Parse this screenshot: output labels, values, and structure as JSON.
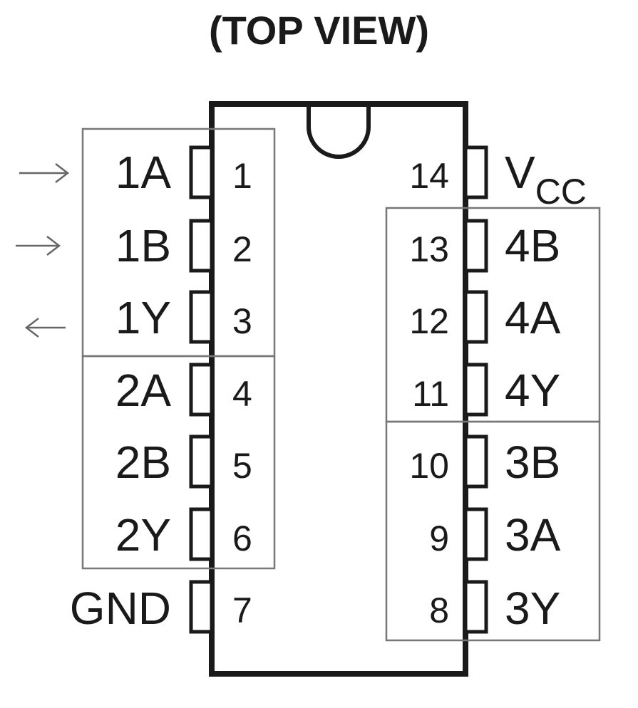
{
  "title": "(TOP VIEW)",
  "colors": {
    "outline": "#1a1a1a",
    "group_box": "#777777",
    "arrow": "#666666"
  },
  "pins_left": [
    {
      "number": "1",
      "label": "1A"
    },
    {
      "number": "2",
      "label": "1B"
    },
    {
      "number": "3",
      "label": "1Y"
    },
    {
      "number": "4",
      "label": "2A"
    },
    {
      "number": "5",
      "label": "2B"
    },
    {
      "number": "6",
      "label": "2Y"
    },
    {
      "number": "7",
      "label": "GND"
    }
  ],
  "pins_right": [
    {
      "number": "14",
      "label_main": "V",
      "label_sub": "CC"
    },
    {
      "number": "13",
      "label": "4B"
    },
    {
      "number": "12",
      "label": "4A"
    },
    {
      "number": "11",
      "label": "4Y"
    },
    {
      "number": "10",
      "label": "3B"
    },
    {
      "number": "9",
      "label": "3A"
    },
    {
      "number": "8",
      "label": "3Y"
    }
  ],
  "arrows": [
    {
      "pin": "1A",
      "direction": "input"
    },
    {
      "pin": "1B",
      "direction": "input"
    },
    {
      "pin": "1Y",
      "direction": "output"
    }
  ]
}
